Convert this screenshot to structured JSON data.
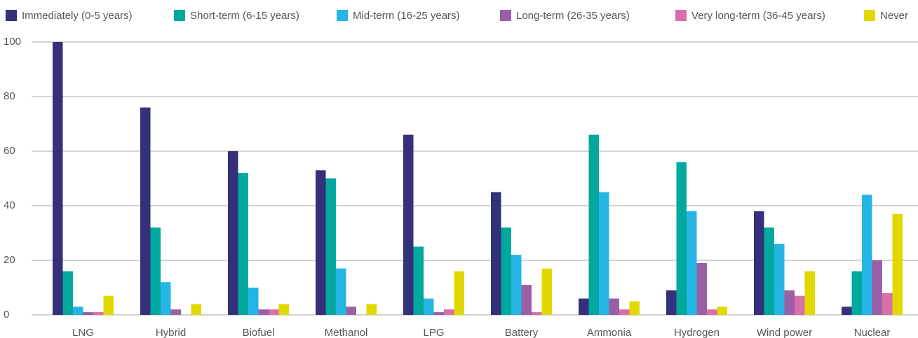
{
  "chart_data": {
    "type": "bar",
    "categories": [
      "LNG",
      "Hybrid",
      "Biofuel",
      "Methanol",
      "LPG",
      "Battery",
      "Ammonia",
      "Hydrogen",
      "Wind power",
      "Nuclear"
    ],
    "series": [
      {
        "name": "Immediately (0-5 years)",
        "color": "#35307a",
        "values": [
          100,
          76,
          60,
          53,
          66,
          45,
          6,
          9,
          38,
          3
        ]
      },
      {
        "name": "Short-term (6-15 years)",
        "color": "#00a89d",
        "values": [
          16,
          32,
          52,
          50,
          25,
          32,
          66,
          56,
          32,
          16
        ]
      },
      {
        "name": "Mid-term (16-25 years)",
        "color": "#25b5e5",
        "values": [
          3,
          12,
          10,
          17,
          6,
          22,
          45,
          38,
          26,
          44
        ]
      },
      {
        "name": "Long-term (26-35 years)",
        "color": "#9b5fa5",
        "values": [
          1,
          2,
          2,
          3,
          1,
          11,
          6,
          19,
          9,
          20
        ]
      },
      {
        "name": "Very long-term (36-45 years)",
        "color": "#d86fa9",
        "values": [
          1,
          0,
          2,
          0,
          2,
          1,
          2,
          2,
          7,
          8
        ]
      },
      {
        "name": "Never",
        "color": "#e1d800",
        "values": [
          7,
          4,
          4,
          4,
          16,
          17,
          5,
          3,
          16,
          37
        ]
      }
    ],
    "ylim": [
      0,
      100
    ],
    "yticks": [
      0,
      20,
      40,
      60,
      80,
      100
    ],
    "grid": true,
    "legend": "top"
  }
}
